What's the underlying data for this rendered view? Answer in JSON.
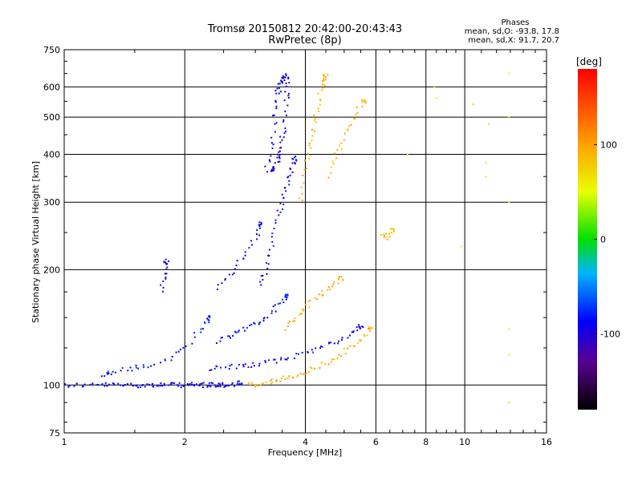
{
  "chart_data": {
    "type": "scatter",
    "title": "Tromsø 20150812 20:42:00-20:43:43",
    "subtitle": "RwPretec (8p)",
    "xlabel": "Frequency [MHz]",
    "ylabel": "Stationary phase Virtual Height [km]",
    "x_scale": "log",
    "y_scale": "log",
    "xlim": [
      1,
      16
    ],
    "ylim": [
      75,
      750
    ],
    "x_ticks": [
      1,
      2,
      4,
      6,
      8,
      10,
      16
    ],
    "x_tick_labels": [
      "1",
      "2",
      "4",
      "6",
      "8",
      "10",
      "16"
    ],
    "y_ticks": [
      75,
      100,
      200,
      300,
      400,
      500,
      600,
      750
    ],
    "y_tick_labels": [
      "75",
      "100",
      "200",
      "300",
      "400",
      "500",
      "600",
      "750"
    ],
    "grid": true,
    "stats": {
      "heading": "Phases",
      "line1": "mean, sd,O: -93.8, 17.8",
      "line2": "mean, sd,X:  91.7, 20.7"
    },
    "colorbar": {
      "label": "[deg]",
      "range": [
        -180,
        180
      ],
      "ticks": [
        100,
        0,
        -100
      ],
      "tick_labels": [
        "100",
        "0",
        "-100"
      ]
    },
    "traces": [
      {
        "kind": "O",
        "phase": -95,
        "points": [
          [
            1.0,
            100
          ],
          [
            1.1,
            100
          ],
          [
            1.2,
            100
          ],
          [
            1.3,
            100
          ],
          [
            1.4,
            100
          ],
          [
            1.5,
            100
          ],
          [
            1.6,
            100
          ],
          [
            1.7,
            100
          ],
          [
            1.8,
            100
          ],
          [
            1.9,
            100
          ],
          [
            2.0,
            100
          ],
          [
            2.1,
            100
          ],
          [
            2.2,
            100
          ],
          [
            2.3,
            100
          ],
          [
            2.4,
            100
          ],
          [
            2.5,
            100
          ],
          [
            2.6,
            100
          ],
          [
            2.75,
            101
          ]
        ]
      },
      {
        "kind": "O",
        "phase": -95,
        "points": [
          [
            2.3,
            110
          ],
          [
            2.5,
            111
          ],
          [
            2.8,
            112
          ],
          [
            3.0,
            113
          ],
          [
            3.3,
            115
          ],
          [
            3.6,
            117
          ],
          [
            4.0,
            122
          ],
          [
            4.4,
            126
          ],
          [
            4.8,
            130
          ],
          [
            5.2,
            136
          ],
          [
            5.5,
            142
          ]
        ]
      },
      {
        "kind": "O",
        "phase": -100,
        "points": [
          [
            3.2,
            360
          ],
          [
            3.3,
            420
          ],
          [
            3.35,
            500
          ],
          [
            3.4,
            570
          ],
          [
            3.45,
            610
          ],
          [
            3.5,
            630
          ],
          [
            3.55,
            640
          ],
          [
            3.6,
            620
          ],
          [
            3.6,
            560
          ],
          [
            3.55,
            480
          ],
          [
            3.5,
            430
          ],
          [
            3.45,
            400
          ],
          [
            3.4,
            380
          ],
          [
            3.3,
            365
          ]
        ]
      },
      {
        "kind": "O",
        "phase": -92,
        "points": [
          [
            3.1,
            180
          ],
          [
            3.2,
            200
          ],
          [
            3.3,
            230
          ],
          [
            3.4,
            270
          ],
          [
            3.5,
            300
          ],
          [
            3.6,
            330
          ],
          [
            3.7,
            360
          ],
          [
            3.75,
            390
          ]
        ]
      },
      {
        "kind": "O",
        "phase": -98,
        "points": [
          [
            2.4,
            180
          ],
          [
            2.6,
            195
          ],
          [
            2.8,
            215
          ],
          [
            3.0,
            240
          ],
          [
            3.1,
            265
          ]
        ]
      },
      {
        "kind": "O",
        "phase": -105,
        "points": [
          [
            1.75,
            175
          ],
          [
            1.78,
            195
          ],
          [
            1.8,
            210
          ]
        ]
      },
      {
        "kind": "O",
        "phase": -90,
        "points": [
          [
            2.4,
            130
          ],
          [
            2.6,
            135
          ],
          [
            2.8,
            140
          ],
          [
            3.0,
            145
          ],
          [
            3.2,
            150
          ],
          [
            3.4,
            160
          ],
          [
            3.6,
            170
          ]
        ]
      },
      {
        "kind": "O",
        "phase": -88,
        "points": [
          [
            1.25,
            105
          ],
          [
            1.3,
            108
          ],
          [
            1.45,
            110
          ],
          [
            1.6,
            112
          ],
          [
            1.8,
            115
          ],
          [
            2.0,
            125
          ],
          [
            2.2,
            140
          ],
          [
            2.3,
            150
          ]
        ]
      },
      {
        "kind": "X",
        "phase": 92,
        "points": [
          [
            2.9,
            100
          ],
          [
            3.1,
            101
          ],
          [
            3.3,
            102
          ],
          [
            3.5,
            104
          ],
          [
            3.8,
            106
          ],
          [
            4.1,
            109
          ],
          [
            4.4,
            113
          ],
          [
            4.8,
            118
          ],
          [
            5.2,
            125
          ],
          [
            5.6,
            133
          ],
          [
            5.8,
            140
          ]
        ]
      },
      {
        "kind": "X",
        "phase": 95,
        "points": [
          [
            3.6,
            140
          ],
          [
            3.8,
            150
          ],
          [
            4.0,
            160
          ],
          [
            4.3,
            170
          ],
          [
            4.6,
            180
          ],
          [
            4.9,
            190
          ]
        ]
      },
      {
        "kind": "X",
        "phase": 90,
        "points": [
          [
            3.9,
            300
          ],
          [
            4.0,
            360
          ],
          [
            4.1,
            420
          ],
          [
            4.2,
            480
          ],
          [
            4.3,
            540
          ],
          [
            4.4,
            600
          ],
          [
            4.5,
            640
          ]
        ]
      },
      {
        "kind": "X",
        "phase": 88,
        "points": [
          [
            4.6,
            350
          ],
          [
            4.8,
            400
          ],
          [
            5.0,
            450
          ],
          [
            5.3,
            500
          ],
          [
            5.6,
            550
          ]
        ]
      },
      {
        "kind": "X",
        "phase": 85,
        "points": [
          [
            6.2,
            250
          ],
          [
            6.4,
            240
          ],
          [
            6.6,
            255
          ]
        ]
      },
      {
        "kind": "scatter",
        "phase": 60,
        "points": [
          [
            7.2,
            400
          ],
          [
            8.4,
            600
          ],
          [
            8.5,
            560
          ],
          [
            9.8,
            230
          ],
          [
            12.9,
            650
          ],
          [
            12.9,
            500
          ],
          [
            12.9,
            300
          ],
          [
            12.9,
            140
          ],
          [
            12.9,
            120
          ],
          [
            12.9,
            90
          ],
          [
            11.5,
            480
          ],
          [
            10.5,
            540
          ],
          [
            11.3,
            380
          ],
          [
            11.3,
            350
          ]
        ]
      }
    ]
  }
}
